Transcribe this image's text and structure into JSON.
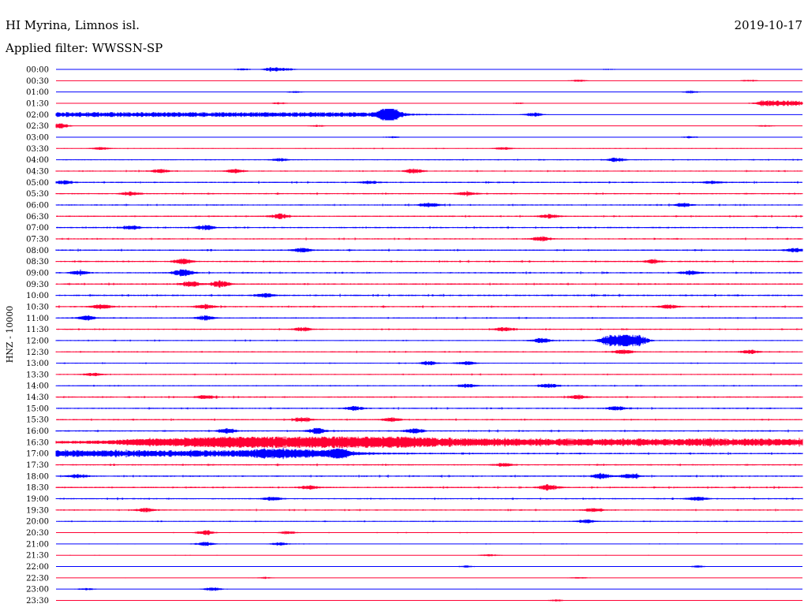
{
  "header": {
    "station": "HI Myrina, Limnos isl.",
    "date": "2019-10-17",
    "filter": "Applied filter: WWSSN-SP"
  },
  "chart_data": {
    "type": "seismogram",
    "ylabel": "HNZ - 10000",
    "colors": {
      "odd_trace": "#0000ff",
      "even_trace": "#ff0033",
      "text": "#000000"
    },
    "rows": [
      {
        "label": "00:00",
        "noise": 0.04,
        "events": [
          {
            "t": 0.25,
            "a": 1.2
          },
          {
            "t": 0.29,
            "a": 2.5
          },
          {
            "t": 0.31,
            "a": 1.5
          },
          {
            "t": 0.74,
            "a": 0.8
          }
        ]
      },
      {
        "label": "00:30",
        "noise": 0.04,
        "events": [
          {
            "t": 0.7,
            "a": 1.2
          },
          {
            "t": 0.93,
            "a": 1.2
          }
        ]
      },
      {
        "label": "01:00",
        "noise": 0.05,
        "events": [
          {
            "t": 0.32,
            "a": 1.0
          },
          {
            "t": 0.85,
            "a": 1.5
          }
        ]
      },
      {
        "label": "01:30",
        "noise": 0.05,
        "events": [
          {
            "t": 0.3,
            "a": 1.2
          },
          {
            "t": 0.62,
            "a": 0.8
          },
          {
            "t": 0.97,
            "a": 3.0,
            "w": 0.025,
            "dense": true
          }
        ]
      },
      {
        "label": "02:00",
        "noise": 0.1,
        "events": [
          {
            "t": 0.2,
            "a": 2.5,
            "w": 0.2,
            "dense": true
          },
          {
            "t": 0.44,
            "a": 3.5
          },
          {
            "t": 0.45,
            "a": 7.0
          },
          {
            "t": 0.64,
            "a": 2.0
          }
        ]
      },
      {
        "label": "02:30",
        "noise": 0.08,
        "events": [
          {
            "t": 0.005,
            "a": 3.0
          },
          {
            "t": 0.35,
            "a": 1.0
          },
          {
            "t": 0.95,
            "a": 1.0
          }
        ]
      },
      {
        "label": "03:00",
        "noise": 0.15,
        "events": [
          {
            "t": 0.45,
            "a": 1.0
          },
          {
            "t": 0.85,
            "a": 1.0
          }
        ]
      },
      {
        "label": "03:30",
        "noise": 0.3,
        "events": [
          {
            "t": 0.06,
            "a": 1.5
          },
          {
            "t": 0.6,
            "a": 1.2
          }
        ]
      },
      {
        "label": "04:00",
        "noise": 0.4,
        "events": [
          {
            "t": 0.3,
            "a": 1.5
          },
          {
            "t": 0.75,
            "a": 2.0
          }
        ]
      },
      {
        "label": "04:30",
        "noise": 0.5,
        "events": [
          {
            "t": 0.14,
            "a": 2.0
          },
          {
            "t": 0.24,
            "a": 2.0
          },
          {
            "t": 0.48,
            "a": 2.0
          }
        ]
      },
      {
        "label": "05:00",
        "noise": 0.55,
        "events": [
          {
            "t": 0.01,
            "a": 2.0
          },
          {
            "t": 0.42,
            "a": 1.5
          },
          {
            "t": 0.88,
            "a": 1.5
          }
        ]
      },
      {
        "label": "05:30",
        "noise": 0.55,
        "events": [
          {
            "t": 0.1,
            "a": 2.0
          },
          {
            "t": 0.55,
            "a": 2.0
          }
        ]
      },
      {
        "label": "06:00",
        "noise": 0.55,
        "events": [
          {
            "t": 0.5,
            "a": 2.5
          },
          {
            "t": 0.84,
            "a": 2.0
          }
        ]
      },
      {
        "label": "06:30",
        "noise": 0.55,
        "events": [
          {
            "t": 0.3,
            "a": 2.5
          },
          {
            "t": 0.66,
            "a": 2.0
          }
        ]
      },
      {
        "label": "07:00",
        "noise": 0.6,
        "events": [
          {
            "t": 0.1,
            "a": 2.0
          },
          {
            "t": 0.2,
            "a": 2.5
          }
        ]
      },
      {
        "label": "07:30",
        "noise": 0.55,
        "events": [
          {
            "t": 0.65,
            "a": 2.0
          }
        ]
      },
      {
        "label": "08:00",
        "noise": 0.6,
        "events": [
          {
            "t": 0.33,
            "a": 2.0
          },
          {
            "t": 0.99,
            "a": 2.0
          }
        ]
      },
      {
        "label": "08:30",
        "noise": 0.6,
        "events": [
          {
            "t": 0.17,
            "a": 3.0
          },
          {
            "t": 0.8,
            "a": 2.0
          }
        ]
      },
      {
        "label": "09:00",
        "noise": 0.6,
        "events": [
          {
            "t": 0.03,
            "a": 2.0
          },
          {
            "t": 0.17,
            "a": 4.0
          },
          {
            "t": 0.85,
            "a": 2.0
          }
        ]
      },
      {
        "label": "09:30",
        "noise": 0.6,
        "events": [
          {
            "t": 0.18,
            "a": 3.0
          },
          {
            "t": 0.22,
            "a": 3.5
          }
        ]
      },
      {
        "label": "10:00",
        "noise": 0.65,
        "events": [
          {
            "t": 0.28,
            "a": 2.0
          }
        ]
      },
      {
        "label": "10:30",
        "noise": 0.6,
        "events": [
          {
            "t": 0.06,
            "a": 2.5
          },
          {
            "t": 0.2,
            "a": 2.5
          },
          {
            "t": 0.82,
            "a": 2.0
          }
        ]
      },
      {
        "label": "11:00",
        "noise": 0.5,
        "events": [
          {
            "t": 0.04,
            "a": 2.5
          },
          {
            "t": 0.2,
            "a": 2.5
          }
        ]
      },
      {
        "label": "11:30",
        "noise": 0.5,
        "events": [
          {
            "t": 0.33,
            "a": 2.0
          },
          {
            "t": 0.6,
            "a": 2.0
          }
        ]
      },
      {
        "label": "12:00",
        "noise": 0.45,
        "events": [
          {
            "t": 0.65,
            "a": 2.5
          },
          {
            "t": 0.74,
            "a": 5.0
          },
          {
            "t": 0.76,
            "a": 8.0
          },
          {
            "t": 0.78,
            "a": 6.0
          }
        ]
      },
      {
        "label": "12:30",
        "noise": 0.45,
        "events": [
          {
            "t": 0.76,
            "a": 2.5
          },
          {
            "t": 0.93,
            "a": 2.0
          }
        ]
      },
      {
        "label": "13:00",
        "noise": 0.4,
        "events": [
          {
            "t": 0.5,
            "a": 2.0
          },
          {
            "t": 0.55,
            "a": 2.0
          }
        ]
      },
      {
        "label": "13:30",
        "noise": 0.45,
        "events": [
          {
            "t": 0.05,
            "a": 1.5
          }
        ]
      },
      {
        "label": "14:00",
        "noise": 0.45,
        "events": [
          {
            "t": 0.55,
            "a": 2.0
          },
          {
            "t": 0.66,
            "a": 2.0
          }
        ]
      },
      {
        "label": "14:30",
        "noise": 0.55,
        "events": [
          {
            "t": 0.2,
            "a": 2.0
          },
          {
            "t": 0.7,
            "a": 2.0
          }
        ]
      },
      {
        "label": "15:00",
        "noise": 0.55,
        "events": [
          {
            "t": 0.4,
            "a": 2.0
          },
          {
            "t": 0.75,
            "a": 2.0
          }
        ]
      },
      {
        "label": "15:30",
        "noise": 0.55,
        "events": [
          {
            "t": 0.33,
            "a": 2.5
          },
          {
            "t": 0.45,
            "a": 2.0
          }
        ]
      },
      {
        "label": "16:00",
        "noise": 0.6,
        "events": [
          {
            "t": 0.23,
            "a": 2.5
          },
          {
            "t": 0.35,
            "a": 3.0
          },
          {
            "t": 0.48,
            "a": 2.5
          }
        ]
      },
      {
        "label": "16:30",
        "noise": 1.0,
        "events": [
          {
            "t": 0.16,
            "a": 2.0,
            "w": 0.06,
            "dense": true
          },
          {
            "t": 0.35,
            "a": 3.0,
            "w": 0.12,
            "dense": true
          },
          {
            "t": 0.65,
            "a": 3.0,
            "w": 0.35,
            "dense": true
          }
        ]
      },
      {
        "label": "17:00",
        "noise": 0.6,
        "events": [
          {
            "t": 0.14,
            "a": 3.0,
            "w": 0.16,
            "dense": true
          },
          {
            "t": 0.33,
            "a": 2.5,
            "w": 0.05,
            "dense": true
          },
          {
            "t": 0.38,
            "a": 3.0
          }
        ]
      },
      {
        "label": "17:30",
        "noise": 0.6,
        "events": [
          {
            "t": 0.6,
            "a": 1.5
          }
        ]
      },
      {
        "label": "18:00",
        "noise": 0.6,
        "events": [
          {
            "t": 0.03,
            "a": 2.0
          },
          {
            "t": 0.73,
            "a": 3.0
          },
          {
            "t": 0.77,
            "a": 2.5
          }
        ]
      },
      {
        "label": "18:30",
        "noise": 0.6,
        "events": [
          {
            "t": 0.34,
            "a": 2.0
          },
          {
            "t": 0.66,
            "a": 3.0
          }
        ]
      },
      {
        "label": "19:00",
        "noise": 0.55,
        "events": [
          {
            "t": 0.29,
            "a": 2.0
          },
          {
            "t": 0.86,
            "a": 2.0
          }
        ]
      },
      {
        "label": "19:30",
        "noise": 0.5,
        "events": [
          {
            "t": 0.12,
            "a": 2.0
          },
          {
            "t": 0.72,
            "a": 2.0
          }
        ]
      },
      {
        "label": "20:00",
        "noise": 0.4,
        "events": [
          {
            "t": 0.71,
            "a": 2.0
          }
        ]
      },
      {
        "label": "20:30",
        "noise": 0.3,
        "events": [
          {
            "t": 0.2,
            "a": 2.5
          },
          {
            "t": 0.31,
            "a": 1.5
          }
        ]
      },
      {
        "label": "21:00",
        "noise": 0.25,
        "events": [
          {
            "t": 0.2,
            "a": 2.0
          },
          {
            "t": 0.3,
            "a": 1.5
          }
        ]
      },
      {
        "label": "21:30",
        "noise": 0.15,
        "events": [
          {
            "t": 0.58,
            "a": 1.0
          }
        ]
      },
      {
        "label": "22:00",
        "noise": 0.12,
        "events": [
          {
            "t": 0.55,
            "a": 1.0
          },
          {
            "t": 0.86,
            "a": 1.0
          }
        ]
      },
      {
        "label": "22:30",
        "noise": 0.12,
        "events": [
          {
            "t": 0.28,
            "a": 1.0
          },
          {
            "t": 0.7,
            "a": 1.0
          }
        ]
      },
      {
        "label": "23:00",
        "noise": 0.12,
        "events": [
          {
            "t": 0.04,
            "a": 1.2
          },
          {
            "t": 0.21,
            "a": 2.0
          }
        ]
      },
      {
        "label": "23:30",
        "noise": 0.12,
        "events": [
          {
            "t": 0.67,
            "a": 1.0
          }
        ]
      }
    ]
  }
}
